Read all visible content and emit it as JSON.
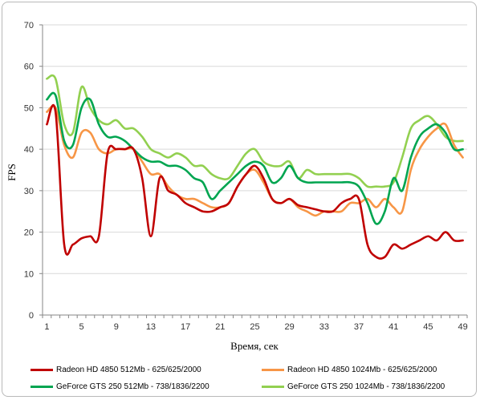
{
  "chart_data": {
    "type": "line",
    "xlabel": "Время, сек",
    "ylabel": "FPS",
    "xlim": [
      1,
      49
    ],
    "ylim": [
      0,
      70
    ],
    "xticks": [
      1,
      5,
      9,
      13,
      17,
      21,
      25,
      29,
      33,
      37,
      41,
      45,
      49
    ],
    "yticks": [
      0,
      10,
      20,
      30,
      40,
      50,
      60,
      70
    ],
    "grid": "horizontal",
    "legend_position": "bottom",
    "x": [
      1,
      2,
      3,
      4,
      5,
      6,
      7,
      8,
      9,
      10,
      11,
      12,
      13,
      14,
      15,
      16,
      17,
      18,
      19,
      20,
      21,
      22,
      23,
      24,
      25,
      26,
      27,
      28,
      29,
      30,
      31,
      32,
      33,
      34,
      35,
      36,
      37,
      38,
      39,
      40,
      41,
      42,
      43,
      44,
      45,
      46,
      47,
      48,
      49
    ],
    "series": [
      {
        "name": "Radeon HD 4850 512Mb - 625/625/2000",
        "color": "#c00000",
        "values": [
          46,
          49,
          17,
          17,
          18.5,
          19,
          19,
          39,
          40,
          40,
          40,
          33,
          19,
          33,
          30,
          29,
          27,
          26,
          25,
          25,
          26,
          27,
          31,
          34,
          36,
          33,
          28,
          27,
          28,
          26.5,
          26,
          25.5,
          25,
          25,
          27,
          28,
          28,
          17,
          14,
          14,
          17,
          16,
          17,
          18,
          19,
          18,
          20,
          18,
          18
        ]
      },
      {
        "name": "Radeon HD 4850 1024Mb - 625/625/2000",
        "color": "#f79646",
        "values": [
          49,
          50,
          41,
          38,
          44,
          44,
          40,
          39,
          40,
          40,
          40,
          37,
          34,
          34,
          31,
          29,
          28,
          28,
          27,
          26,
          26,
          27,
          31,
          34,
          35,
          32,
          28,
          27,
          28,
          26,
          25,
          24,
          25,
          25,
          25,
          27,
          27,
          28,
          26,
          28,
          26,
          25,
          35,
          40,
          43,
          45,
          46,
          41,
          38
        ]
      },
      {
        "name": "GeForce GTS 250 512Mb - 738/1836/2200",
        "color": "#00a550",
        "values": [
          52,
          53,
          42,
          41,
          50,
          52,
          46,
          43,
          43,
          42,
          40,
          38,
          37,
          37,
          36,
          36,
          35,
          33,
          32,
          28,
          30,
          32,
          34,
          36,
          37,
          36,
          32,
          33,
          36,
          33,
          32,
          32,
          32,
          32,
          32,
          32,
          31,
          27,
          22,
          25,
          33,
          30,
          38,
          43,
          45,
          46,
          44,
          40,
          40
        ]
      },
      {
        "name": "GeForce GTS 250 1024Mb - 738/1836/2200",
        "color": "#92d050",
        "values": [
          57,
          57,
          46,
          44,
          55,
          50,
          47,
          46,
          47,
          45,
          45,
          43,
          40,
          39,
          38,
          39,
          38,
          36,
          36,
          34,
          33,
          33,
          36,
          39,
          40,
          37,
          36,
          36,
          37,
          33,
          35,
          34,
          34,
          34,
          34,
          34,
          33,
          31,
          31,
          31,
          32,
          38,
          45,
          47,
          48,
          46,
          43,
          42,
          42
        ]
      }
    ]
  }
}
